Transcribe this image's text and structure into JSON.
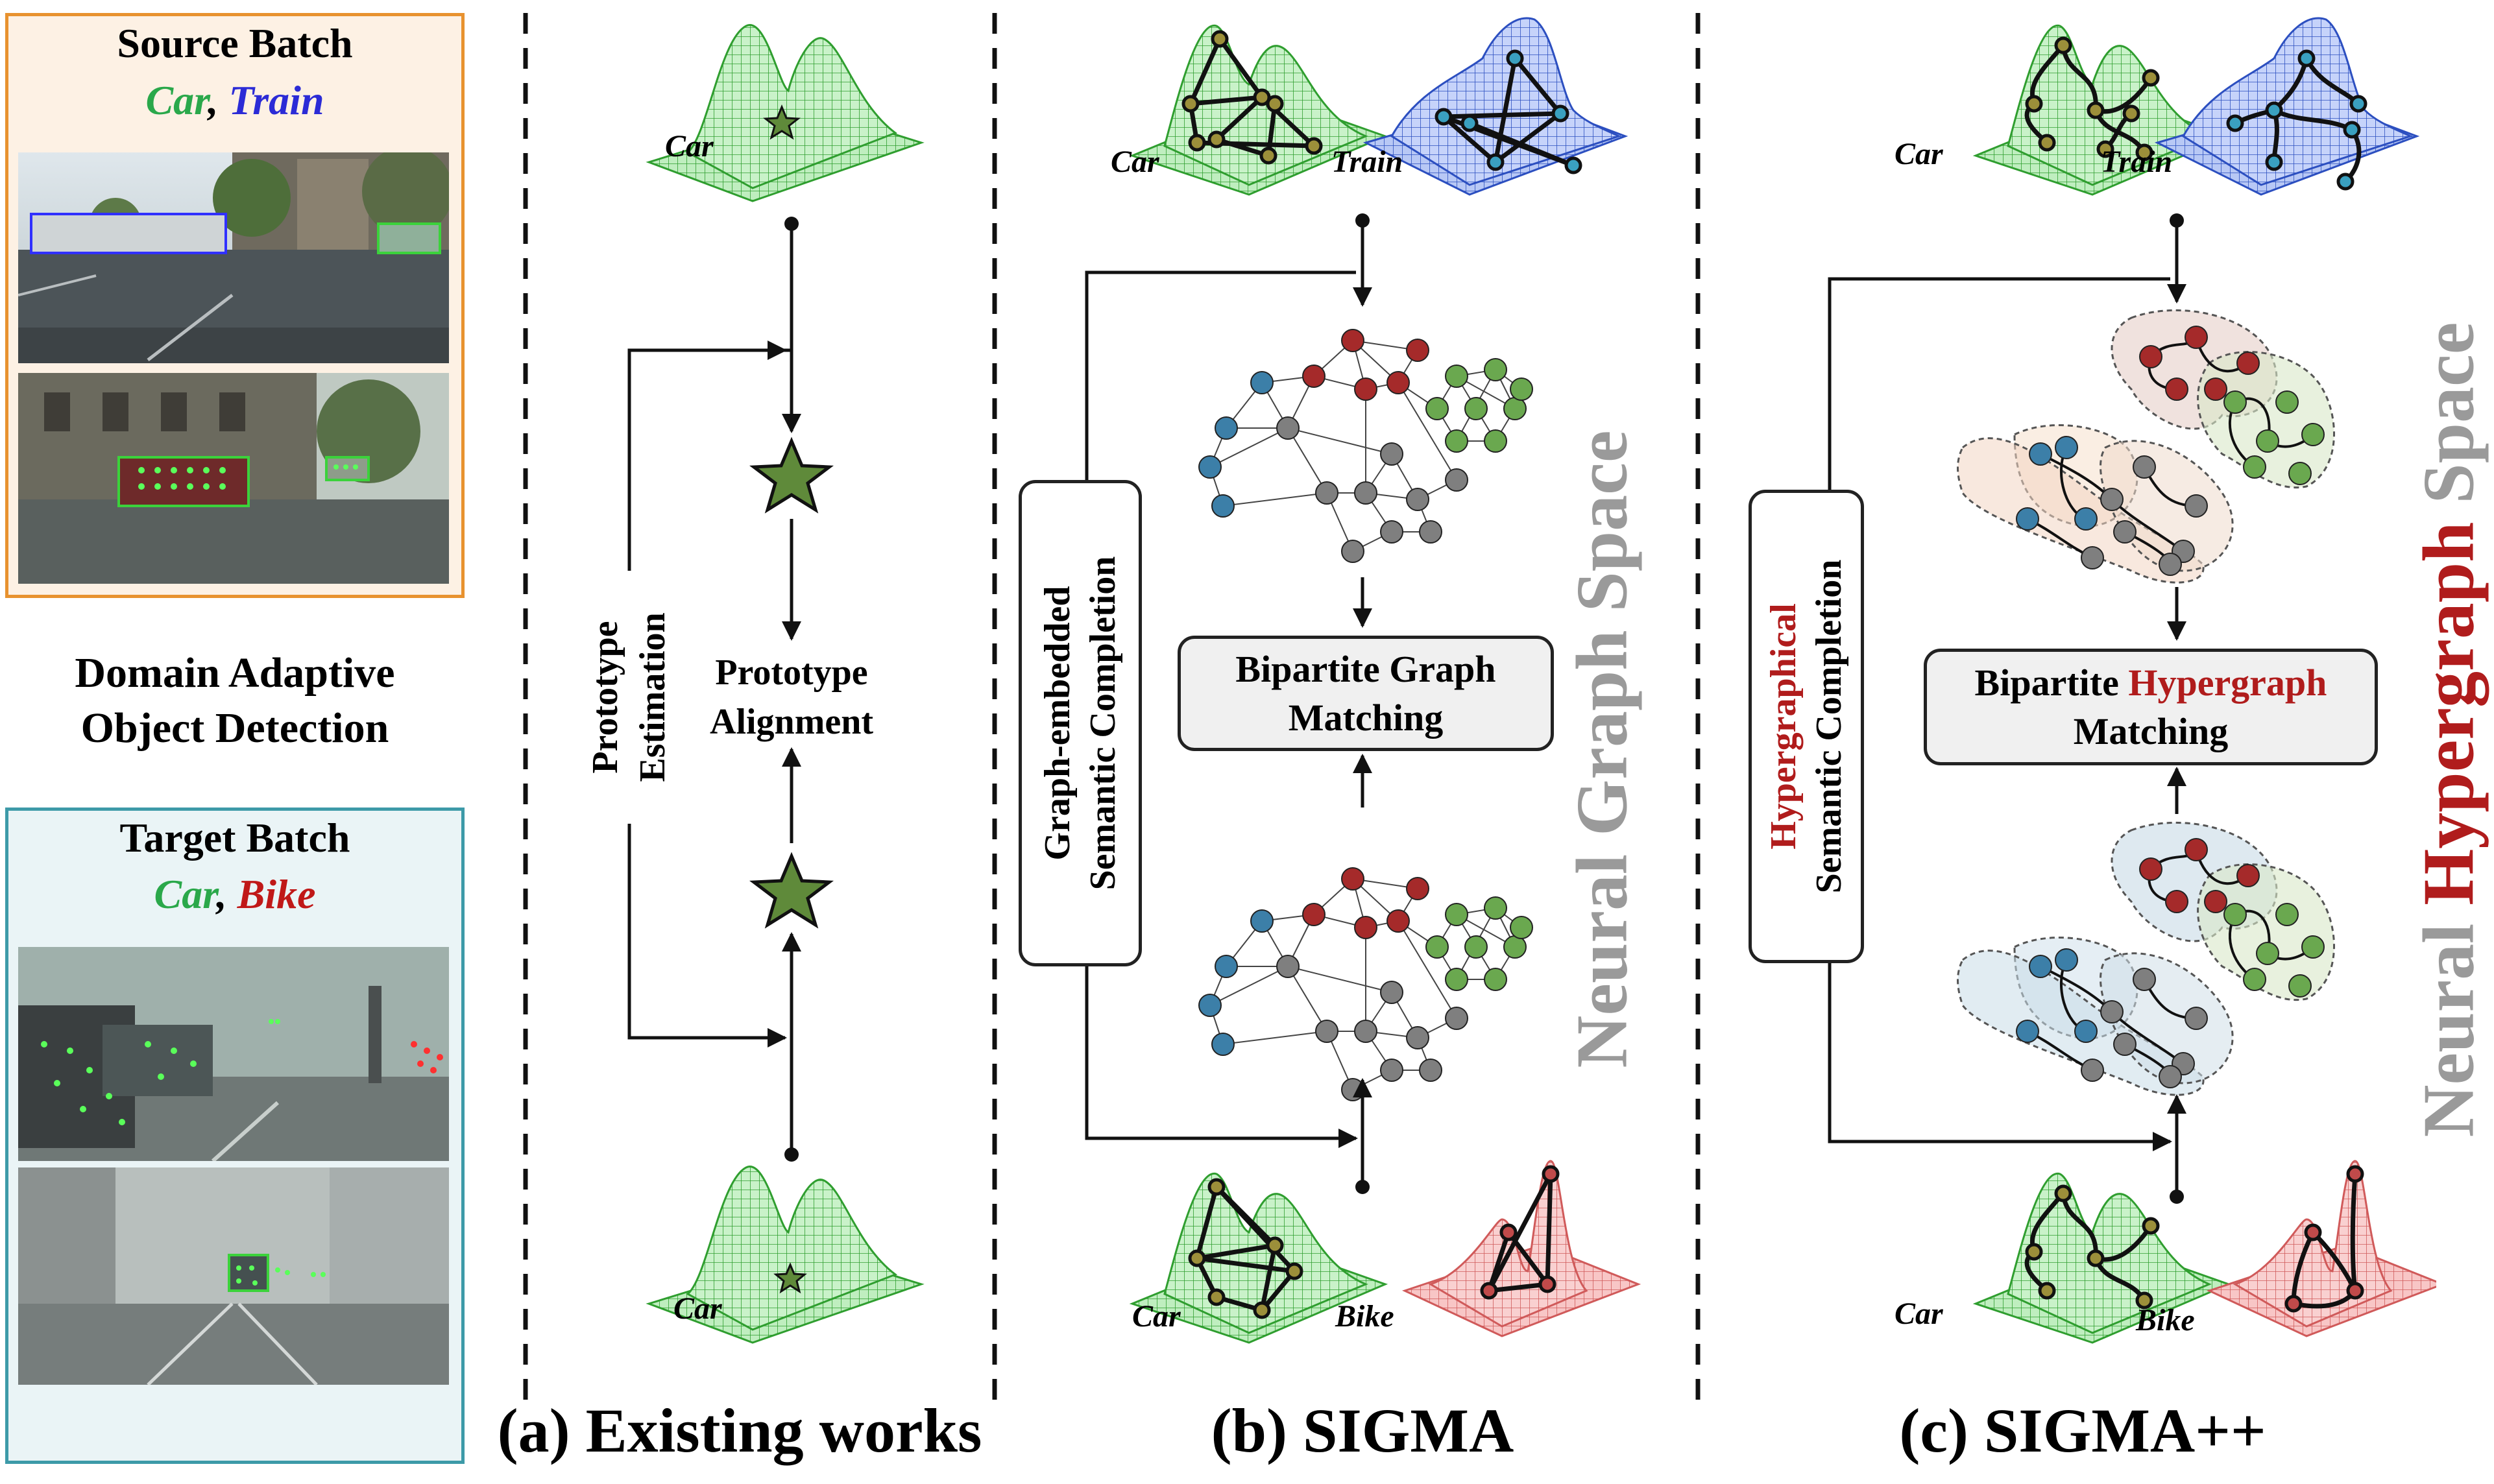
{
  "source_panel": {
    "title": "Source Batch",
    "class_a": "Car",
    "separator": ",",
    "class_b": "Train",
    "colors": {
      "border": "#e8922f",
      "bg": "#fdf1e4",
      "car": "#2aa84a",
      "train": "#2b2bd6"
    }
  },
  "middle_label": {
    "line1": "Domain Adaptive",
    "line2": "Object Detection"
  },
  "target_panel": {
    "title": "Target Batch",
    "class_a": "Car",
    "separator": ",",
    "class_b": "Bike",
    "colors": {
      "border": "#3d9aa8",
      "bg": "#eaf4f6",
      "car": "#2aa84a",
      "bike": "#c01818"
    }
  },
  "existing": {
    "car_top": "Car",
    "car_bottom": "Car",
    "prototype_estimation": [
      "Prototype",
      "Estimation"
    ],
    "prototype_alignment": [
      "Prototype",
      "Alignment"
    ],
    "caption": "(a) Existing works"
  },
  "sigma": {
    "car_top": "Car",
    "train_top": "Train",
    "car_bottom": "Car",
    "bike_bottom": "Bike",
    "side_box": [
      "Graph-embedded",
      "Semantic Completion"
    ],
    "matching": [
      "Bipartite Graph",
      "Matching"
    ],
    "space_label": "Neural Graph Space",
    "caption": "(b) SIGMA"
  },
  "sigmapp": {
    "car_top": "Car",
    "train_top": "Train",
    "car_bottom": "Car",
    "bike_bottom": "Bike",
    "side_box_red": "Hypergraphical",
    "side_box_black": "Semantic Completion",
    "matching_prefix": "Bipartite",
    "matching_red": "Hypergraph",
    "matching_line2": "Matching",
    "space_prefix": "Neural",
    "space_red": "Hypergraph",
    "space_suffix": "Space",
    "caption": "(c) SIGMA++"
  },
  "colors": {
    "accent_red": "#b01c1c",
    "surface_green": "#3fbf3f",
    "surface_blue": "#3a5fd0",
    "surface_red": "#e07070",
    "node_red": "#a52a2a",
    "node_green": "#6aa84f",
    "node_blue": "#3c7fa8",
    "node_gray": "#7f7f7f",
    "star_fill": "#5f8a3a"
  }
}
